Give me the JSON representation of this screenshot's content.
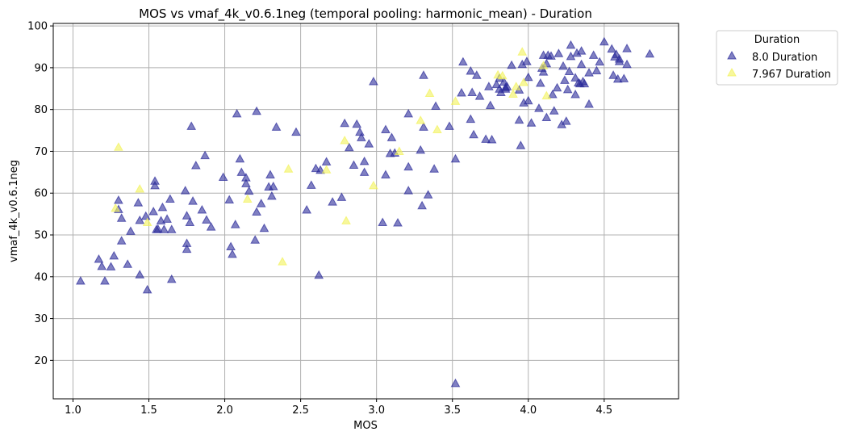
{
  "chart_data": {
    "type": "scatter",
    "title": "MOS vs vmaf_4k_v0.6.1neg (temporal pooling: harmonic_mean) - Duration",
    "xlabel": "MOS",
    "ylabel": "vmaf_4k_v0.6.1neg",
    "xlim": [
      0.87,
      4.99
    ],
    "ylim": [
      10.8,
      100.6
    ],
    "xticks": [
      "1.0",
      "1.5",
      "2.0",
      "2.5",
      "3.0",
      "3.5",
      "4.0",
      "4.5"
    ],
    "xtick_values": [
      1.0,
      1.5,
      2.0,
      2.5,
      3.0,
      3.5,
      4.0,
      4.5
    ],
    "yticks": [
      "20",
      "30",
      "40",
      "50",
      "60",
      "70",
      "80",
      "90",
      "100"
    ],
    "ytick_values": [
      20,
      30,
      40,
      50,
      60,
      70,
      80,
      90,
      100
    ],
    "grid": true,
    "legend": {
      "title": "Duration",
      "placement": "outside-top-right"
    },
    "series": [
      {
        "name": "8.0 Duration",
        "color": "#2b2b9a",
        "marker": "triangle",
        "points": [
          [
            1.05,
            39.0
          ],
          [
            1.17,
            44.2
          ],
          [
            1.19,
            42.5
          ],
          [
            1.21,
            39.0
          ],
          [
            1.25,
            42.4
          ],
          [
            1.27,
            45.0
          ],
          [
            1.3,
            58.3
          ],
          [
            1.3,
            56.1
          ],
          [
            1.32,
            54.0
          ],
          [
            1.32,
            48.6
          ],
          [
            1.36,
            43.0
          ],
          [
            1.38,
            50.9
          ],
          [
            1.43,
            57.7
          ],
          [
            1.44,
            53.5
          ],
          [
            1.44,
            40.5
          ],
          [
            1.48,
            54.5
          ],
          [
            1.49,
            36.9
          ],
          [
            1.53,
            55.6
          ],
          [
            1.54,
            62.9
          ],
          [
            1.54,
            61.8
          ],
          [
            1.55,
            51.3
          ],
          [
            1.56,
            51.4
          ],
          [
            1.58,
            53.4
          ],
          [
            1.59,
            56.6
          ],
          [
            1.6,
            51.3
          ],
          [
            1.62,
            53.8
          ],
          [
            1.64,
            58.6
          ],
          [
            1.65,
            51.3
          ],
          [
            1.65,
            39.4
          ],
          [
            1.74,
            60.6
          ],
          [
            1.75,
            54.6
          ],
          [
            1.75,
            48.0
          ],
          [
            1.75,
            46.6
          ],
          [
            1.77,
            53.0
          ],
          [
            1.78,
            76.0
          ],
          [
            1.79,
            58.1
          ],
          [
            1.81,
            66.6
          ],
          [
            1.85,
            56.0
          ],
          [
            1.87,
            69.0
          ],
          [
            1.88,
            53.6
          ],
          [
            1.91,
            51.9
          ],
          [
            1.99,
            63.8
          ],
          [
            2.03,
            58.4
          ],
          [
            2.04,
            47.2
          ],
          [
            2.05,
            45.4
          ],
          [
            2.07,
            52.5
          ],
          [
            2.08,
            79.0
          ],
          [
            2.1,
            68.2
          ],
          [
            2.11,
            65.0
          ],
          [
            2.14,
            63.7
          ],
          [
            2.14,
            62.3
          ],
          [
            2.16,
            60.5
          ],
          [
            2.2,
            48.8
          ],
          [
            2.21,
            79.6
          ],
          [
            2.21,
            55.5
          ],
          [
            2.24,
            57.5
          ],
          [
            2.26,
            51.6
          ],
          [
            2.29,
            61.5
          ],
          [
            2.3,
            64.4
          ],
          [
            2.31,
            59.3
          ],
          [
            2.32,
            61.6
          ],
          [
            2.34,
            75.8
          ],
          [
            2.47,
            74.6
          ],
          [
            2.54,
            56.0
          ],
          [
            2.57,
            61.9
          ],
          [
            2.6,
            65.9
          ],
          [
            2.62,
            40.4
          ],
          [
            2.63,
            65.5
          ],
          [
            2.67,
            67.5
          ],
          [
            2.71,
            57.9
          ],
          [
            2.77,
            59.0
          ],
          [
            2.79,
            76.7
          ],
          [
            2.82,
            70.9
          ],
          [
            2.85,
            66.7
          ],
          [
            2.87,
            76.5
          ],
          [
            2.89,
            74.6
          ],
          [
            2.9,
            73.3
          ],
          [
            2.92,
            67.6
          ],
          [
            2.92,
            65.0
          ],
          [
            2.95,
            71.8
          ],
          [
            2.98,
            86.7
          ],
          [
            3.04,
            53.0
          ],
          [
            3.06,
            75.2
          ],
          [
            3.06,
            64.4
          ],
          [
            3.09,
            69.5
          ],
          [
            3.1,
            73.3
          ],
          [
            3.12,
            69.6
          ],
          [
            3.14,
            52.9
          ],
          [
            3.21,
            79.0
          ],
          [
            3.21,
            66.3
          ],
          [
            3.21,
            60.6
          ],
          [
            3.29,
            70.3
          ],
          [
            3.3,
            57.0
          ],
          [
            3.31,
            88.2
          ],
          [
            3.31,
            75.8
          ],
          [
            3.34,
            59.6
          ],
          [
            3.38,
            65.8
          ],
          [
            3.39,
            80.8
          ],
          [
            3.48,
            76.0
          ],
          [
            3.52,
            68.2
          ],
          [
            3.52,
            14.5
          ],
          [
            3.56,
            84.0
          ],
          [
            3.57,
            91.4
          ],
          [
            3.62,
            77.7
          ],
          [
            3.62,
            89.2
          ],
          [
            3.63,
            84.1
          ],
          [
            3.64,
            74.0
          ],
          [
            3.66,
            88.2
          ],
          [
            3.68,
            83.2
          ],
          [
            3.72,
            72.9
          ],
          [
            3.74,
            85.5
          ],
          [
            3.75,
            81.0
          ],
          [
            3.76,
            72.8
          ],
          [
            3.79,
            86.0
          ],
          [
            3.81,
            84.9
          ],
          [
            3.81,
            87.5
          ],
          [
            3.82,
            84.1
          ],
          [
            3.84,
            86.6
          ],
          [
            3.85,
            84.9
          ],
          [
            3.85,
            85.3
          ],
          [
            3.86,
            85.5
          ],
          [
            3.89,
            90.6
          ],
          [
            3.94,
            84.7
          ],
          [
            3.94,
            77.5
          ],
          [
            3.95,
            71.4
          ],
          [
            3.96,
            90.8
          ],
          [
            3.97,
            81.6
          ],
          [
            3.99,
            91.5
          ],
          [
            4.0,
            87.7
          ],
          [
            4.0,
            82.1
          ],
          [
            4.02,
            76.8
          ],
          [
            4.07,
            80.3
          ],
          [
            4.08,
            86.3
          ],
          [
            4.09,
            89.9
          ],
          [
            4.1,
            89.0
          ],
          [
            4.1,
            93.0
          ],
          [
            4.12,
            78.1
          ],
          [
            4.12,
            91.0
          ],
          [
            4.13,
            93.0
          ],
          [
            4.15,
            92.8
          ],
          [
            4.16,
            83.6
          ],
          [
            4.17,
            79.7
          ],
          [
            4.19,
            85.2
          ],
          [
            4.2,
            93.4
          ],
          [
            4.22,
            76.4
          ],
          [
            4.23,
            90.4
          ],
          [
            4.24,
            87.0
          ],
          [
            4.25,
            77.2
          ],
          [
            4.26,
            84.8
          ],
          [
            4.27,
            89.1
          ],
          [
            4.28,
            95.4
          ],
          [
            4.28,
            92.7
          ],
          [
            4.31,
            83.6
          ],
          [
            4.31,
            87.6
          ],
          [
            4.32,
            93.5
          ],
          [
            4.33,
            86.4
          ],
          [
            4.34,
            86.2
          ],
          [
            4.35,
            90.8
          ],
          [
            4.35,
            94.0
          ],
          [
            4.36,
            86.7
          ],
          [
            4.37,
            86.2
          ],
          [
            4.4,
            88.8
          ],
          [
            4.4,
            81.3
          ],
          [
            4.43,
            93.0
          ],
          [
            4.45,
            89.3
          ],
          [
            4.47,
            91.4
          ],
          [
            4.5,
            96.2
          ],
          [
            4.55,
            94.5
          ],
          [
            4.56,
            88.2
          ],
          [
            4.57,
            92.6
          ],
          [
            4.58,
            93.2
          ],
          [
            4.59,
            87.3
          ],
          [
            4.6,
            91.5
          ],
          [
            4.6,
            92.1
          ],
          [
            4.63,
            87.4
          ],
          [
            4.65,
            94.6
          ],
          [
            4.65,
            90.8
          ],
          [
            4.8,
            93.3
          ]
        ]
      },
      {
        "name": "7.967 Duration",
        "color": "#f2f25a",
        "marker": "triangle",
        "points": [
          [
            1.28,
            56.4
          ],
          [
            1.3,
            71.0
          ],
          [
            1.44,
            61.0
          ],
          [
            1.49,
            53.0
          ],
          [
            2.15,
            58.6
          ],
          [
            2.38,
            43.6
          ],
          [
            2.42,
            65.8
          ],
          [
            2.67,
            65.6
          ],
          [
            2.79,
            72.6
          ],
          [
            2.8,
            53.4
          ],
          [
            2.98,
            61.8
          ],
          [
            3.15,
            70.0
          ],
          [
            3.29,
            77.4
          ],
          [
            3.35,
            83.9
          ],
          [
            3.4,
            75.2
          ],
          [
            3.52,
            82.0
          ],
          [
            3.8,
            88.3
          ],
          [
            3.83,
            88.1
          ],
          [
            3.9,
            83.7
          ],
          [
            3.92,
            85.5
          ],
          [
            3.96,
            93.8
          ],
          [
            3.97,
            86.5
          ],
          [
            4.1,
            90.5
          ],
          [
            4.12,
            83.3
          ]
        ]
      }
    ]
  }
}
